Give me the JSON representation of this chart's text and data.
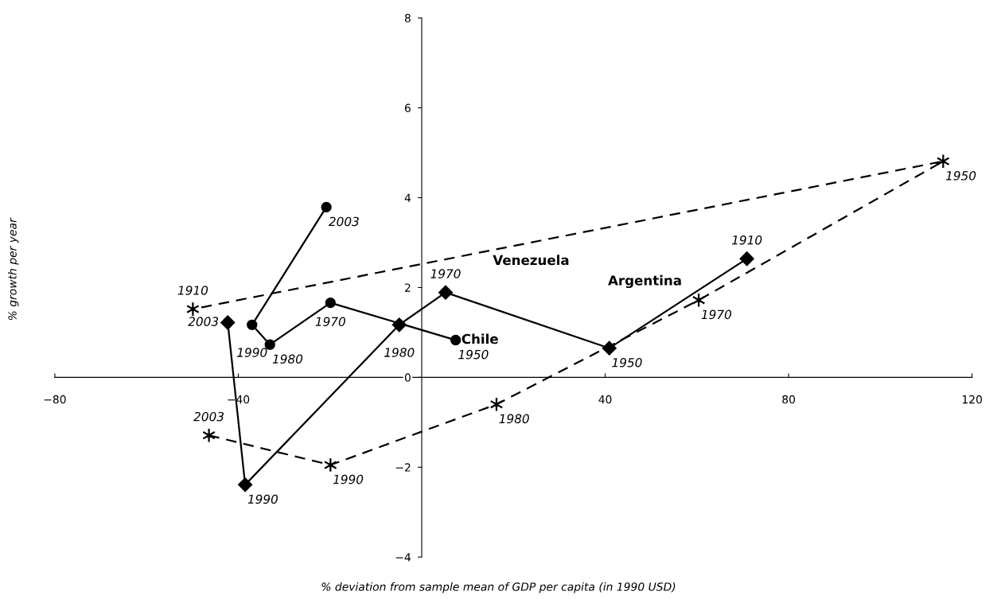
{
  "chart_data": {
    "type": "line",
    "xlabel": "% deviation from sample mean of GDP per capita (in 1990 USD)",
    "ylabel": "% growth per year",
    "xlim": [
      -80,
      120
    ],
    "xticks": [
      -80,
      -40,
      40,
      80,
      120
    ],
    "ylim": [
      -4,
      8
    ],
    "yticks": [
      -4,
      -2,
      0,
      2,
      4,
      6,
      8
    ],
    "grid": false,
    "series": [
      {
        "color": "#000000",
        "marker": "circle",
        "line_style": "solid",
        "x": [
          -20.8,
          -37.0,
          -33.1,
          -19.9,
          7.4
        ],
        "values": [
          3.79,
          1.17,
          0.73,
          1.66,
          0.83
        ]
      },
      {
        "color": "#000000",
        "marker": "diamond",
        "line_style": "solid",
        "x": [
          -42.3,
          -38.5,
          -4.9,
          5.2,
          40.9,
          70.9
        ],
        "values": [
          1.22,
          -2.39,
          1.17,
          1.89,
          0.65,
          2.64
        ]
      },
      {
        "color": "#000000",
        "marker": "cross",
        "line_style": "dashed",
        "x": [
          -46.4,
          -19.9,
          16.3,
          60.4,
          113.7,
          -49.9
        ],
        "values": [
          -1.29,
          -1.95,
          -0.6,
          1.72,
          4.81,
          1.52
        ]
      }
    ],
    "annotations": [
      {
        "text": "2003",
        "x": -20.8,
        "y": 3.79
      },
      {
        "text": "1990",
        "x": -37.0,
        "y": 1.17
      },
      {
        "text": "1980",
        "x": -33.1,
        "y": 0.73
      },
      {
        "text": "1970",
        "x": -19.9,
        "y": 1.66
      },
      {
        "text": "1950",
        "x": 7.4,
        "y": 0.83
      },
      {
        "text": "2003",
        "x": -42.3,
        "y": 1.22
      },
      {
        "text": "1990",
        "x": -38.5,
        "y": -2.39
      },
      {
        "text": "1980",
        "x": -4.9,
        "y": 1.17
      },
      {
        "text": "1970",
        "x": 5.2,
        "y": 1.89
      },
      {
        "text": "1950",
        "x": 40.9,
        "y": 0.65
      },
      {
        "text": "1910",
        "x": 70.9,
        "y": 2.64
      },
      {
        "text": "2003",
        "x": -46.4,
        "y": -1.29
      },
      {
        "text": "1990",
        "x": -19.9,
        "y": -1.95
      },
      {
        "text": "1980",
        "x": 16.3,
        "y": -0.6
      },
      {
        "text": "1970",
        "x": 60.4,
        "y": 1.72
      },
      {
        "text": "1950",
        "x": 113.7,
        "y": 4.81
      },
      {
        "text": "1910",
        "x": -49.9,
        "y": 1.52
      },
      {
        "text": "Venezuela",
        "x": 20,
        "y": 2.93
      },
      {
        "text": "Argentina",
        "x": 55.9,
        "y": 1.64
      },
      {
        "text": "Chile",
        "x": 7.4,
        "y": 0.83
      }
    ]
  }
}
